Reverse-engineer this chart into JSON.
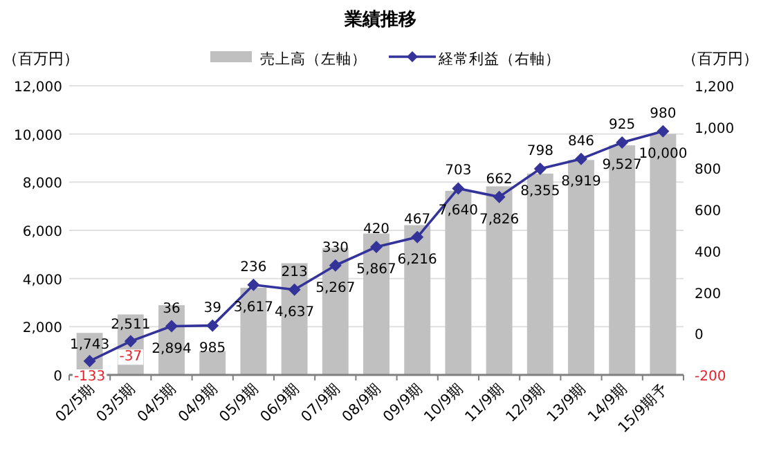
{
  "chart_data": {
    "type": "bar",
    "title": "業績推移",
    "ylabel": "（百万円）",
    "y2label": "（百万円）",
    "categories": [
      "02/5期",
      "03/5期",
      "04/5期",
      "04/9期",
      "05/9期",
      "06/9期",
      "07/9期",
      "08/9期",
      "09/9期",
      "10/9期",
      "11/9期",
      "12/9期",
      "13/9期",
      "14/9期",
      "15/9期予"
    ],
    "series": [
      {
        "name": "売上高（左軸）",
        "type": "bar",
        "color": "#c0c0c0",
        "values": [
          1743,
          2511,
          2894,
          985,
          3617,
          4637,
          5267,
          5867,
          6216,
          7640,
          7826,
          8355,
          8919,
          9527,
          10000
        ],
        "value_labels": [
          "1,743",
          "2,511",
          "2,894",
          "985",
          "3,617",
          "4,637",
          "5,267",
          "5,867",
          "6,216",
          "7,640",
          "7,826",
          "8,355",
          "8,919",
          "9,527",
          "10,000"
        ]
      },
      {
        "name": "経常利益（右軸）",
        "type": "line",
        "axis": "y2",
        "color": "#333399",
        "marker": "diamond",
        "values": [
          -133,
          -37,
          36,
          39,
          236,
          213,
          330,
          420,
          467,
          703,
          662,
          798,
          846,
          925,
          980
        ],
        "value_labels": [
          "-133",
          "-37",
          "36",
          "39",
          "236",
          "213",
          "330",
          "420",
          "467",
          "703",
          "662",
          "798",
          "846",
          "925",
          "980"
        ]
      }
    ],
    "ylim": [
      0,
      12000
    ],
    "yticks": [
      {
        "value": 0,
        "label": "0"
      },
      {
        "value": 2000,
        "label": "2,000"
      },
      {
        "value": 4000,
        "label": "4,000"
      },
      {
        "value": 6000,
        "label": "6,000"
      },
      {
        "value": 8000,
        "label": "8,000"
      },
      {
        "value": 10000,
        "label": "10,000"
      },
      {
        "value": 12000,
        "label": "12,000"
      }
    ],
    "y2lim": [
      -200,
      1200
    ],
    "y2ticks": [
      {
        "value": -200,
        "label": "-200"
      },
      {
        "value": 0,
        "label": "0"
      },
      {
        "value": 200,
        "label": "200"
      },
      {
        "value": 400,
        "label": "400"
      },
      {
        "value": 600,
        "label": "600"
      },
      {
        "value": 800,
        "label": "800"
      },
      {
        "value": 1000,
        "label": "1,000"
      },
      {
        "value": 1200,
        "label": "1,200"
      }
    ],
    "grid": "y",
    "legend": "top"
  }
}
